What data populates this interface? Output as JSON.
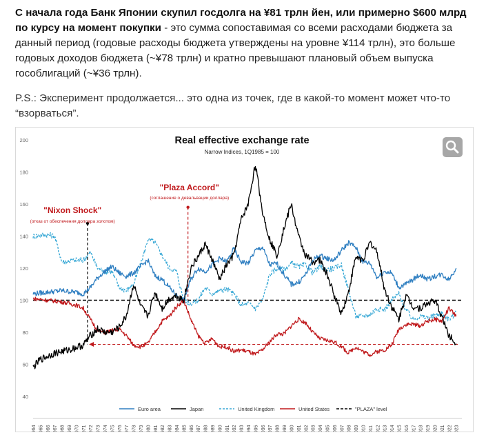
{
  "post": {
    "p1_bold": "С начала года Банк Японии скупил госдолга на ¥81 трлн йен, или примерно $600 млрд по курсу на момент покупки",
    "p1_rest": " - это сумма сопоставимая со всеми расходами бюджета за данный период (годовые расходы бюджета утверждены на уровне ¥114 трлн), это больше годовых доходов бюджета (~¥78 трлн) и кратно превышают плановый объем выпуска гособлигаций (~¥36 трлн).",
    "p2": "P.S.: Эксперимент продолжается... это одна из точек, где в какой-то момент может что-то “взорваться”."
  },
  "colors": {
    "euro": "#2f7fc1",
    "japan": "#000000",
    "uk": "#3aa9d6",
    "us": "#c0191c",
    "plaza": "#000000",
    "annotation": "#c0191c"
  },
  "chart_data": {
    "type": "line",
    "title": "Real effective exchange rate",
    "subtitle": "Narrow Indices, 1Q1985 = 100",
    "ylim": [
      40,
      200
    ],
    "yticks": [
      40,
      60,
      80,
      100,
      120,
      140,
      160,
      180,
      200
    ],
    "xlim": [
      1964,
      2023.8
    ],
    "years": [
      "1964",
      "1965",
      "1966",
      "1967",
      "1968",
      "1969",
      "1970",
      "1971",
      "1972",
      "1973",
      "1974",
      "1975",
      "1976",
      "1977",
      "1978",
      "1979",
      "1980",
      "1981",
      "1982",
      "1983",
      "1984",
      "1985",
      "1986",
      "1987",
      "1988",
      "1989",
      "1990",
      "1991",
      "1992",
      "1993",
      "1994",
      "1995",
      "1996",
      "1997",
      "1998",
      "1999",
      "2000",
      "2001",
      "2002",
      "2003",
      "2004",
      "2005",
      "2006",
      "2007",
      "2008",
      "2009",
      "2010",
      "2011",
      "2012",
      "2013",
      "2014",
      "2015",
      "2016",
      "2017",
      "2018",
      "2019",
      "2020",
      "2021",
      "2022",
      "2023"
    ],
    "legend_position": "bottom",
    "series": [
      {
        "name": "Euro area",
        "key": "euro",
        "style": "solid",
        "points": [
          [
            1964,
            104
          ],
          [
            1966,
            105
          ],
          [
            1968,
            106
          ],
          [
            1970,
            105
          ],
          [
            1971,
            104
          ],
          [
            1972,
            108
          ],
          [
            1973,
            114
          ],
          [
            1974,
            118
          ],
          [
            1975,
            121
          ],
          [
            1976,
            117
          ],
          [
            1977,
            115
          ],
          [
            1978,
            117
          ],
          [
            1979,
            121
          ],
          [
            1980,
            125
          ],
          [
            1981,
            115
          ],
          [
            1982,
            113
          ],
          [
            1983,
            108
          ],
          [
            1984,
            103
          ],
          [
            1985,
            100
          ],
          [
            1986,
            113
          ],
          [
            1987,
            120
          ],
          [
            1988,
            118
          ],
          [
            1989,
            122
          ],
          [
            1990,
            126
          ],
          [
            1991,
            124
          ],
          [
            1992,
            132
          ],
          [
            1993,
            124
          ],
          [
            1994,
            123
          ],
          [
            1995,
            131
          ],
          [
            1996,
            133
          ],
          [
            1997,
            122
          ],
          [
            1998,
            123
          ],
          [
            1999,
            116
          ],
          [
            2000,
            110
          ],
          [
            2001,
            111
          ],
          [
            2002,
            116
          ],
          [
            2003,
            125
          ],
          [
            2004,
            128
          ],
          [
            2005,
            126
          ],
          [
            2006,
            125
          ],
          [
            2007,
            131
          ],
          [
            2008,
            136
          ],
          [
            2009,
            133
          ],
          [
            2010,
            124
          ],
          [
            2011,
            123
          ],
          [
            2012,
            114
          ],
          [
            2013,
            118
          ],
          [
            2014,
            117
          ],
          [
            2015,
            108
          ],
          [
            2016,
            110
          ],
          [
            2017,
            113
          ],
          [
            2018,
            116
          ],
          [
            2019,
            113
          ],
          [
            2020,
            115
          ],
          [
            2021,
            116
          ],
          [
            2022,
            113
          ],
          [
            2023,
            120
          ]
        ]
      },
      {
        "name": "Japan",
        "key": "japan",
        "style": "solid",
        "points": [
          [
            1964,
            58
          ],
          [
            1965,
            63
          ],
          [
            1967,
            67
          ],
          [
            1969,
            69
          ],
          [
            1971,
            72
          ],
          [
            1972,
            78
          ],
          [
            1973,
            82
          ],
          [
            1974,
            80
          ],
          [
            1975,
            80
          ],
          [
            1976,
            83
          ],
          [
            1977,
            90
          ],
          [
            1978,
            110
          ],
          [
            1979,
            96
          ],
          [
            1980,
            90
          ],
          [
            1981,
            105
          ],
          [
            1982,
            95
          ],
          [
            1983,
            101
          ],
          [
            1984,
            103
          ],
          [
            1985,
            100
          ],
          [
            1986,
            120
          ],
          [
            1987,
            127
          ],
          [
            1988,
            135
          ],
          [
            1989,
            125
          ],
          [
            1990,
            113
          ],
          [
            1991,
            122
          ],
          [
            1992,
            128
          ],
          [
            1993,
            150
          ],
          [
            1994,
            160
          ],
          [
            1995,
            185
          ],
          [
            1996,
            155
          ],
          [
            1997,
            138
          ],
          [
            1998,
            128
          ],
          [
            1999,
            145
          ],
          [
            2000,
            160
          ],
          [
            2001,
            140
          ],
          [
            2002,
            128
          ],
          [
            2003,
            124
          ],
          [
            2004,
            125
          ],
          [
            2005,
            116
          ],
          [
            2006,
            103
          ],
          [
            2007,
            92
          ],
          [
            2008,
            105
          ],
          [
            2009,
            127
          ],
          [
            2010,
            125
          ],
          [
            2011,
            136
          ],
          [
            2012,
            130
          ],
          [
            2013,
            107
          ],
          [
            2014,
            96
          ],
          [
            2015,
            88
          ],
          [
            2016,
            103
          ],
          [
            2017,
            96
          ],
          [
            2018,
            95
          ],
          [
            2019,
            98
          ],
          [
            2020,
            100
          ],
          [
            2021,
            90
          ],
          [
            2022,
            78
          ],
          [
            2023,
            73
          ]
        ]
      },
      {
        "name": "United Kingdom",
        "key": "uk",
        "style": "dashed",
        "points": [
          [
            1964,
            140
          ],
          [
            1966,
            141
          ],
          [
            1967,
            140
          ],
          [
            1968,
            124
          ],
          [
            1970,
            125
          ],
          [
            1971,
            125
          ],
          [
            1972,
            130
          ],
          [
            1973,
            120
          ],
          [
            1974,
            118
          ],
          [
            1975,
            118
          ],
          [
            1976,
            108
          ],
          [
            1977,
            106
          ],
          [
            1978,
            110
          ],
          [
            1979,
            122
          ],
          [
            1980,
            138
          ],
          [
            1981,
            136
          ],
          [
            1982,
            128
          ],
          [
            1983,
            120
          ],
          [
            1984,
            118
          ],
          [
            1985,
            100
          ],
          [
            1986,
            98
          ],
          [
            1987,
            100
          ],
          [
            1988,
            108
          ],
          [
            1989,
            104
          ],
          [
            1990,
            106
          ],
          [
            1991,
            107
          ],
          [
            1992,
            104
          ],
          [
            1993,
            97
          ],
          [
            1994,
            98
          ],
          [
            1995,
            95
          ],
          [
            1996,
            100
          ],
          [
            1997,
            116
          ],
          [
            1998,
            120
          ],
          [
            1999,
            119
          ],
          [
            2000,
            123
          ],
          [
            2001,
            121
          ],
          [
            2002,
            122
          ],
          [
            2003,
            117
          ],
          [
            2004,
            121
          ],
          [
            2005,
            119
          ],
          [
            2006,
            120
          ],
          [
            2007,
            122
          ],
          [
            2008,
            106
          ],
          [
            2009,
            90
          ],
          [
            2010,
            90
          ],
          [
            2011,
            91
          ],
          [
            2012,
            95
          ],
          [
            2013,
            94
          ],
          [
            2014,
            100
          ],
          [
            2015,
            104
          ],
          [
            2016,
            94
          ],
          [
            2017,
            88
          ],
          [
            2018,
            90
          ],
          [
            2019,
            89
          ],
          [
            2020,
            90
          ],
          [
            2021,
            92
          ],
          [
            2022,
            88
          ],
          [
            2023,
            92
          ]
        ]
      },
      {
        "name": "United States",
        "key": "us",
        "style": "solid",
        "points": [
          [
            1964,
            101
          ],
          [
            1966,
            100
          ],
          [
            1968,
            99
          ],
          [
            1970,
            97
          ],
          [
            1971,
            95
          ],
          [
            1972,
            88
          ],
          [
            1973,
            81
          ],
          [
            1974,
            80
          ],
          [
            1975,
            81
          ],
          [
            1976,
            82
          ],
          [
            1977,
            78
          ],
          [
            1978,
            72
          ],
          [
            1979,
            71
          ],
          [
            1980,
            73
          ],
          [
            1981,
            80
          ],
          [
            1982,
            87
          ],
          [
            1983,
            90
          ],
          [
            1984,
            96
          ],
          [
            1985,
            100
          ],
          [
            1986,
            88
          ],
          [
            1987,
            78
          ],
          [
            1988,
            73
          ],
          [
            1989,
            76
          ],
          [
            1990,
            71
          ],
          [
            1991,
            71
          ],
          [
            1992,
            68
          ],
          [
            1993,
            69
          ],
          [
            1994,
            68
          ],
          [
            1995,
            66
          ],
          [
            1996,
            69
          ],
          [
            1997,
            74
          ],
          [
            1998,
            79
          ],
          [
            1999,
            79
          ],
          [
            2000,
            84
          ],
          [
            2001,
            88
          ],
          [
            2002,
            86
          ],
          [
            2003,
            80
          ],
          [
            2004,
            76
          ],
          [
            2005,
            75
          ],
          [
            2006,
            74
          ],
          [
            2007,
            71
          ],
          [
            2008,
            67
          ],
          [
            2009,
            71
          ],
          [
            2010,
            68
          ],
          [
            2011,
            66
          ],
          [
            2012,
            68
          ],
          [
            2013,
            69
          ],
          [
            2014,
            72
          ],
          [
            2015,
            82
          ],
          [
            2016,
            85
          ],
          [
            2017,
            85
          ],
          [
            2018,
            84
          ],
          [
            2019,
            87
          ],
          [
            2020,
            88
          ],
          [
            2021,
            87
          ],
          [
            2022,
            95
          ],
          [
            2023,
            90
          ]
        ]
      },
      {
        "name": "\"PLAZA\" level",
        "key": "plaza",
        "style": "dashed",
        "points": [
          [
            1964,
            100
          ],
          [
            2023.8,
            100
          ]
        ]
      }
    ],
    "annotations": [
      {
        "key": "nixon",
        "title": "\"Nixon Shock\"",
        "note": "(отказ от обеспечения доллара золотом)",
        "x": 1971.6,
        "y_top": 148
      },
      {
        "key": "plaza",
        "title": "\"Plaza Accord\"",
        "note": "(соглашение о девальвации доллара)",
        "x": 1985.6,
        "y_top": 158
      }
    ],
    "reference_arrow": {
      "y": 72.5,
      "x_from": 1971.8,
      "x_to": 2023.4
    },
    "zoom_icon": "magnifier-icon"
  }
}
